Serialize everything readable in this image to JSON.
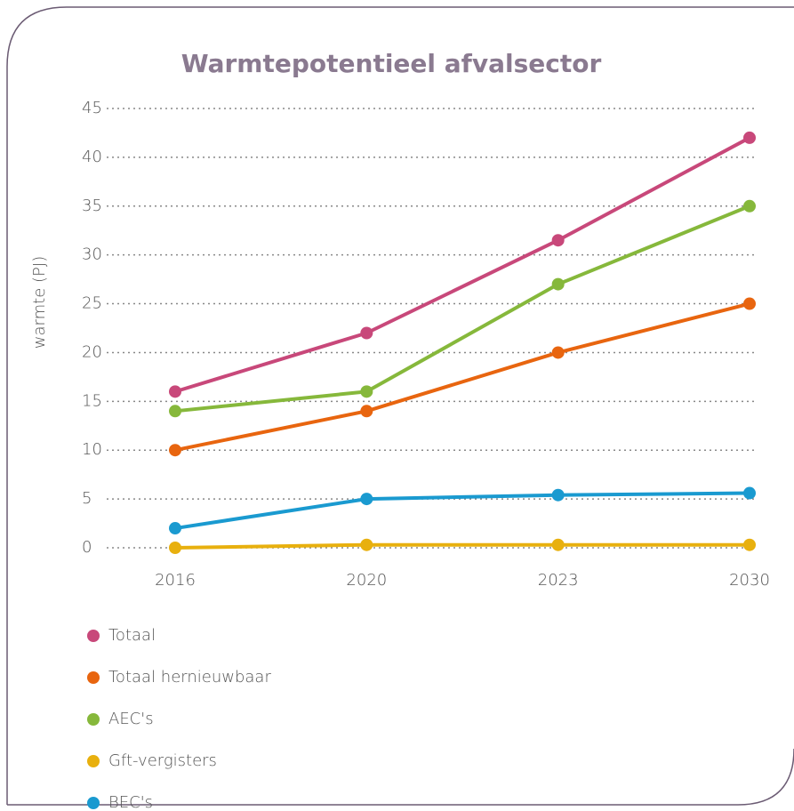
{
  "chart_data": {
    "type": "line",
    "title": "Warmtepotentieel afvalsector",
    "y_label": "warmte (PJ)",
    "categories": [
      "2016",
      "2020",
      "2023",
      "2030"
    ],
    "series": [
      {
        "name": "Totaal",
        "color": "#c8487a",
        "values": [
          16,
          22,
          31.5,
          42
        ]
      },
      {
        "name": "Totaal hernieuwbaar",
        "color": "#e8650f",
        "values": [
          10,
          14,
          20,
          25
        ]
      },
      {
        "name": "AEC's",
        "color": "#86b83b",
        "values": [
          14,
          16,
          27,
          35
        ]
      },
      {
        "name": "Gft-vergisters",
        "color": "#e8b00e",
        "values": [
          0,
          0.3,
          0.3,
          0.3
        ]
      },
      {
        "name": "BEC's",
        "color": "#1a9ad0",
        "values": [
          2,
          5,
          5.4,
          5.6
        ]
      }
    ],
    "ylim": [
      0,
      45
    ],
    "yticks": [
      0,
      5,
      10,
      15,
      20,
      25,
      30,
      35,
      40,
      45
    ],
    "grid": true,
    "legend": "bottom"
  }
}
